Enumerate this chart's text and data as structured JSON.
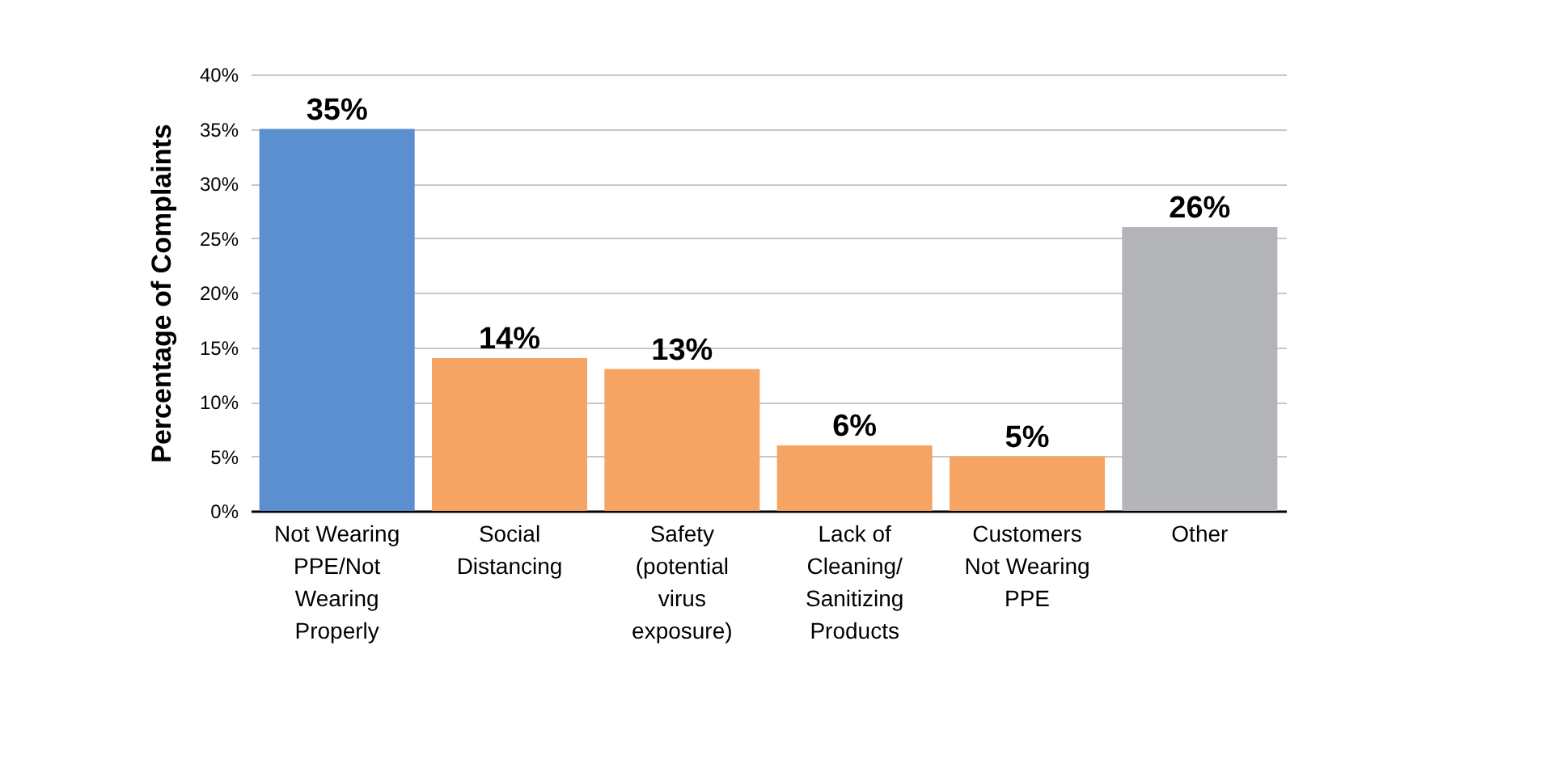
{
  "chart_data": {
    "type": "bar",
    "ylabel": "Percentage of Complaints",
    "categories": [
      "Not Wearing PPE/Not Wearing Properly",
      "Social Distancing",
      "Safety (potential virus exposure)",
      "Lack of Cleaning/ Sanitizing Products",
      "Customers Not Wearing PPE",
      "Other"
    ],
    "values": [
      35,
      14,
      13,
      6,
      5,
      26
    ],
    "colors": [
      "#5b8fd0",
      "#f5a464",
      "#f5a464",
      "#f5a464",
      "#f5a464",
      "#b4b5b9"
    ],
    "value_labels": [
      "35%",
      "14%",
      "13%",
      "6%",
      "5%",
      "26%"
    ],
    "ylim": [
      0,
      40
    ],
    "yticks": [
      {
        "value": 0,
        "label": "0%"
      },
      {
        "value": 5,
        "label": "5%"
      },
      {
        "value": 10,
        "label": "10%"
      },
      {
        "value": 15,
        "label": "15%"
      },
      {
        "value": 20,
        "label": "20%"
      },
      {
        "value": 25,
        "label": "25%"
      },
      {
        "value": 30,
        "label": "30%"
      },
      {
        "value": 35,
        "label": "35%"
      },
      {
        "value": 40,
        "label": "40%"
      }
    ],
    "grid": "y"
  }
}
